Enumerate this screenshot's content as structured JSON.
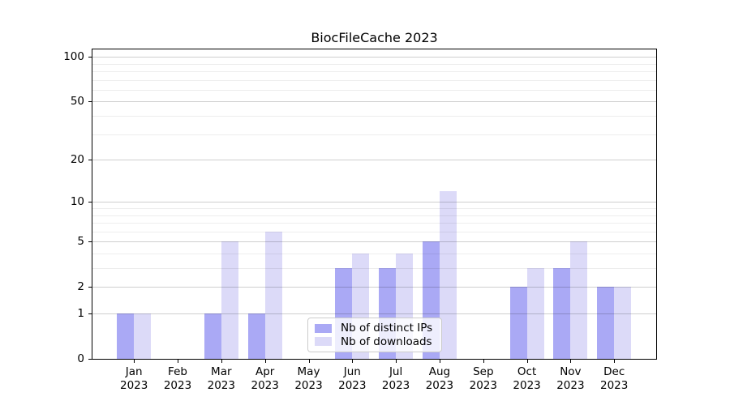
{
  "chart_data": {
    "type": "bar",
    "title": "BiocFileCache 2023",
    "months": [
      "Jan",
      "Feb",
      "Mar",
      "Apr",
      "May",
      "Jun",
      "Jul",
      "Aug",
      "Sep",
      "Oct",
      "Nov",
      "Dec"
    ],
    "year": "2023",
    "series": [
      {
        "name": "Nb of distinct IPs",
        "color": "#aaa9f5",
        "values": [
          1,
          0,
          1,
          1,
          0,
          3,
          3,
          5,
          0,
          2,
          3,
          2
        ]
      },
      {
        "name": "Nb of downloads",
        "color": "#dcdaf8",
        "values": [
          1,
          0,
          5,
          6,
          0,
          4,
          4,
          12,
          0,
          3,
          5,
          2
        ]
      }
    ],
    "yscale": "log1p",
    "yticks": [
      0,
      1,
      2,
      5,
      10,
      20,
      50,
      100
    ],
    "yticks_minor": [
      3,
      4,
      6,
      7,
      8,
      9,
      30,
      40,
      60,
      70,
      80,
      90
    ],
    "ylim": [
      0,
      115
    ],
    "xlabel": "",
    "ylabel": "",
    "grid": "horizontal",
    "legend_position": "lower-center-inside"
  }
}
